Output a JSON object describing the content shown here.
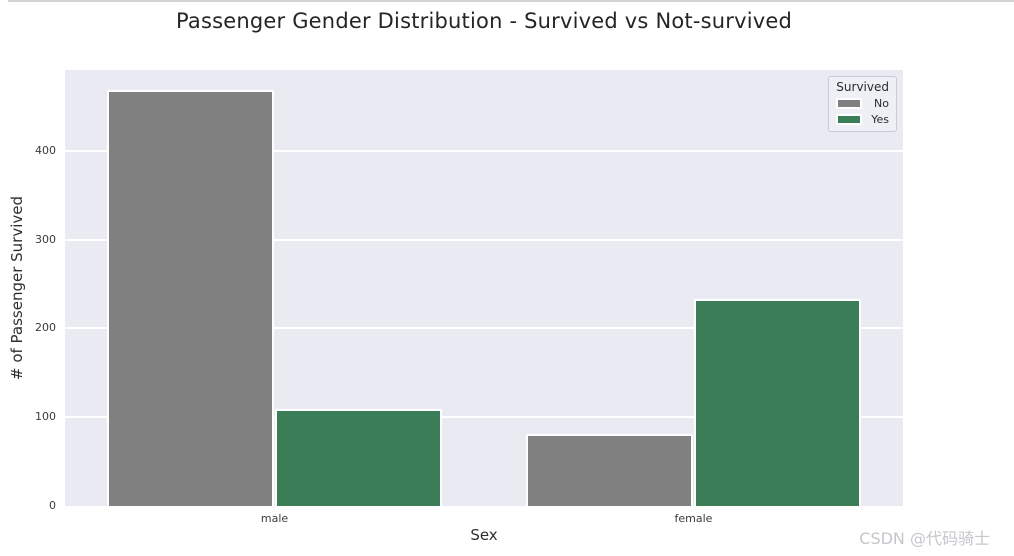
{
  "page": {
    "watermark": "CSDN @代码骑士"
  },
  "chart_data": {
    "type": "bar",
    "title": "Passenger Gender Distribution - Survived vs Not-survived",
    "xlabel": "Sex",
    "ylabel": "# of Passenger Survived",
    "categories": [
      "male",
      "female"
    ],
    "series": [
      {
        "name": "No",
        "color": "#808080",
        "values": [
          468,
          81
        ]
      },
      {
        "name": "Yes",
        "color": "#3a7d56",
        "values": [
          109,
          233
        ]
      }
    ],
    "legend": {
      "title": "Survived",
      "position": "upper right",
      "entries": [
        "No",
        "Yes"
      ]
    },
    "yticks": [
      0,
      100,
      200,
      300,
      400
    ],
    "ylim": [
      0,
      491
    ],
    "grid": true,
    "plot_background": "#eaeaf2",
    "grid_color": "#ffffff",
    "bar_edge_color": "#ffffff"
  }
}
